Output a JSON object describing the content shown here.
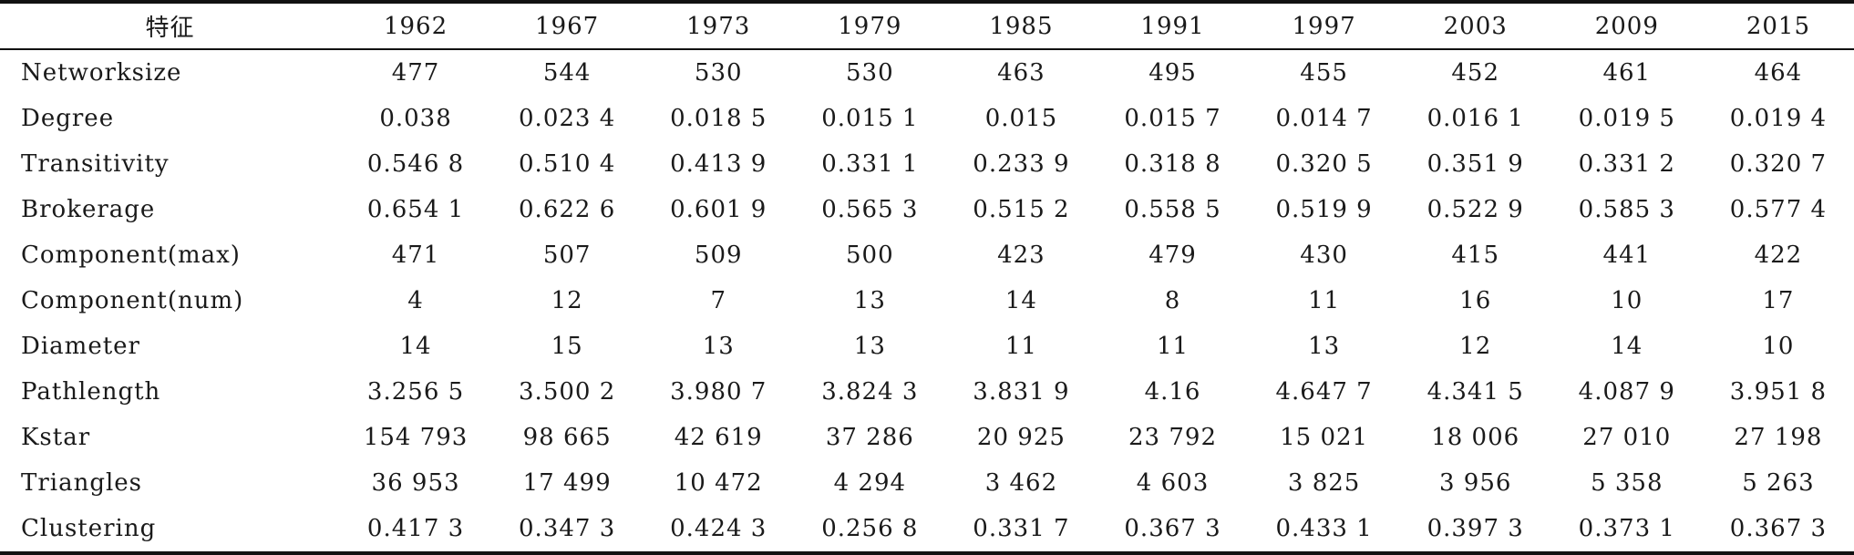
{
  "table": {
    "header_label": "特征",
    "years": [
      "1962",
      "1967",
      "1973",
      "1979",
      "1985",
      "1991",
      "1997",
      "2003",
      "2009",
      "2015"
    ],
    "rows": [
      {
        "label": "Networksize",
        "values": [
          "477",
          "544",
          "530",
          "530",
          "463",
          "495",
          "455",
          "452",
          "461",
          "464"
        ]
      },
      {
        "label": "Degree",
        "values": [
          "0.038",
          "0.023 4",
          "0.018 5",
          "0.015 1",
          "0.015",
          "0.015 7",
          "0.014 7",
          "0.016 1",
          "0.019 5",
          "0.019 4"
        ]
      },
      {
        "label": "Transitivity",
        "values": [
          "0.546 8",
          "0.510 4",
          "0.413 9",
          "0.331 1",
          "0.233 9",
          "0.318 8",
          "0.320 5",
          "0.351 9",
          "0.331 2",
          "0.320 7"
        ]
      },
      {
        "label": "Brokerage",
        "values": [
          "0.654 1",
          "0.622 6",
          "0.601 9",
          "0.565 3",
          "0.515 2",
          "0.558 5",
          "0.519 9",
          "0.522 9",
          "0.585 3",
          "0.577 4"
        ]
      },
      {
        "label": "Component(max)",
        "values": [
          "471",
          "507",
          "509",
          "500",
          "423",
          "479",
          "430",
          "415",
          "441",
          "422"
        ]
      },
      {
        "label": "Component(num)",
        "values": [
          "4",
          "12",
          "7",
          "13",
          "14",
          "8",
          "11",
          "16",
          "10",
          "17"
        ]
      },
      {
        "label": "Diameter",
        "values": [
          "14",
          "15",
          "13",
          "13",
          "11",
          "11",
          "13",
          "12",
          "14",
          "10"
        ]
      },
      {
        "label": "Pathlength",
        "values": [
          "3.256 5",
          "3.500 2",
          "3.980 7",
          "3.824 3",
          "3.831 9",
          "4.16",
          "4.647 7",
          "4.341 5",
          "4.087 9",
          "3.951 8"
        ]
      },
      {
        "label": "Kstar",
        "values": [
          "154 793",
          "98 665",
          "42 619",
          "37 286",
          "20 925",
          "23 792",
          "15 021",
          "18 006",
          "27 010",
          "27 198"
        ]
      },
      {
        "label": "Triangles",
        "values": [
          "36 953",
          "17 499",
          "10 472",
          "4 294",
          "3 462",
          "4 603",
          "3 825",
          "3 956",
          "5 358",
          "5 263"
        ]
      },
      {
        "label": "Clustering",
        "values": [
          "0.417 3",
          "0.347 3",
          "0.424 3",
          "0.256 8",
          "0.331 7",
          "0.367 3",
          "0.433 1",
          "0.397 3",
          "0.373 1",
          "0.367 3"
        ]
      }
    ]
  }
}
